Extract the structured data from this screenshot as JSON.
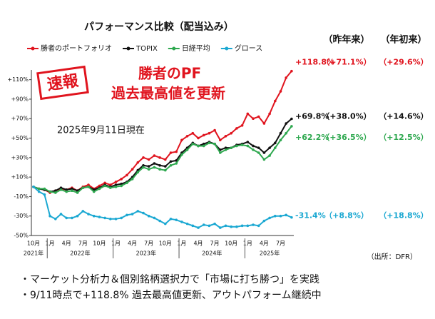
{
  "chart_data": {
    "type": "line",
    "title": "パフォーマンス比較（配当込み）",
    "col_headers": [
      "（昨年来）",
      "（年初来）"
    ],
    "stamp": "速報",
    "headline": [
      "勝者のPF",
      "過去最高値を更新"
    ],
    "as_of": "2025年9月11日現在",
    "source": "（出所：DFR）",
    "bullets": [
      "・マーケット分析力＆個別銘柄選択力で「市場に打ち勝つ」を実践",
      "・9/11時点で+118.8% 過去最高値更新、アウトパフォーム継続中"
    ],
    "categories": [
      "10月",
      null,
      null,
      "1月",
      null,
      null,
      "4月",
      null,
      null,
      "7月",
      null,
      null,
      "10月",
      null,
      null,
      "1月",
      null,
      null,
      "4月",
      null,
      null,
      "7月",
      null,
      null,
      "10月",
      null,
      null,
      "1月",
      null,
      null,
      "4月",
      null,
      null,
      "7月",
      null,
      null,
      "10月",
      null,
      null,
      "1月",
      null,
      null,
      "4月",
      null,
      null,
      "7月",
      null,
      null
    ],
    "year_groups": [
      "2021年",
      "2022年",
      "2023年",
      "2024年",
      "2025年"
    ],
    "ylim": [
      -50,
      120
    ],
    "yticks": [
      {
        "value": 110,
        "label": "+110%"
      },
      {
        "value": 90,
        "label": "+90%"
      },
      {
        "value": 70,
        "label": "+70%"
      },
      {
        "value": 50,
        "label": "+50%"
      },
      {
        "value": 30,
        "label": "+30%"
      },
      {
        "value": 10,
        "label": "+10%"
      },
      {
        "value": -10,
        "label": "-10%"
      },
      {
        "value": -30,
        "label": "-30%"
      },
      {
        "value": -50,
        "label": "-50%"
      }
    ],
    "grid": false,
    "series": [
      {
        "name": "勝者のポートフォリオ",
        "color": "#e0141e",
        "end_label": "+118.8%",
        "yoy": "（+71.1%）",
        "ytd": "（+29.6%）",
        "values": [
          0,
          -2,
          -3,
          -6,
          -4,
          -2,
          -3,
          -1,
          -4,
          0,
          2,
          -2,
          1,
          4,
          2,
          5,
          8,
          12,
          18,
          25,
          30,
          28,
          32,
          30,
          28,
          35,
          36,
          48,
          52,
          55,
          50,
          53,
          55,
          58,
          48,
          52,
          55,
          60,
          63,
          75,
          70,
          72,
          65,
          75,
          88,
          98,
          112,
          118.8
        ]
      },
      {
        "name": "TOPIX",
        "color": "#111111",
        "end_label": "+69.8%",
        "yoy": "（+38.0%）",
        "ytd": "（+14.6%）",
        "values": [
          0,
          -2,
          -3,
          -5,
          -4,
          -1,
          -3,
          -2,
          -4,
          -1,
          0,
          -3,
          -1,
          2,
          0,
          2,
          3,
          5,
          10,
          17,
          22,
          21,
          24,
          22,
          21,
          26,
          27,
          35,
          40,
          45,
          42,
          44,
          46,
          44,
          38,
          40,
          40,
          43,
          44,
          46,
          42,
          40,
          35,
          40,
          45,
          55,
          65,
          69.8
        ]
      },
      {
        "name": "日経平均",
        "color": "#2ea84f",
        "end_label": "+62.2%",
        "yoy": "（+36.5%）",
        "ytd": "（+12.5%）",
        "values": [
          0,
          -2,
          -2,
          -5,
          -6,
          -3,
          -5,
          -4,
          -6,
          -1,
          0,
          -5,
          -2,
          1,
          -1,
          0,
          1,
          4,
          8,
          15,
          20,
          18,
          20,
          18,
          17,
          22,
          24,
          33,
          38,
          44,
          42,
          42,
          45,
          44,
          35,
          38,
          40,
          42,
          43,
          42,
          38,
          35,
          28,
          32,
          40,
          48,
          55,
          62.2
        ]
      },
      {
        "name": "グロース",
        "color": "#1ba8d2",
        "end_label": "-31.4%",
        "yoy": "（+8.8%）",
        "ytd": "（+18.8%）",
        "values": [
          0,
          -5,
          -8,
          -30,
          -33,
          -28,
          -32,
          -32,
          -30,
          -25,
          -28,
          -30,
          -31,
          -32,
          -33,
          -33,
          -32,
          -29,
          -28,
          -25,
          -27,
          -30,
          -32,
          -35,
          -38,
          -33,
          -34,
          -36,
          -38,
          -40,
          -42,
          -39,
          -40,
          -38,
          -42,
          -40,
          -41,
          -41,
          -40,
          -40,
          -39,
          -40,
          -35,
          -32,
          -30,
          -30,
          -29,
          -31.4
        ]
      }
    ]
  }
}
